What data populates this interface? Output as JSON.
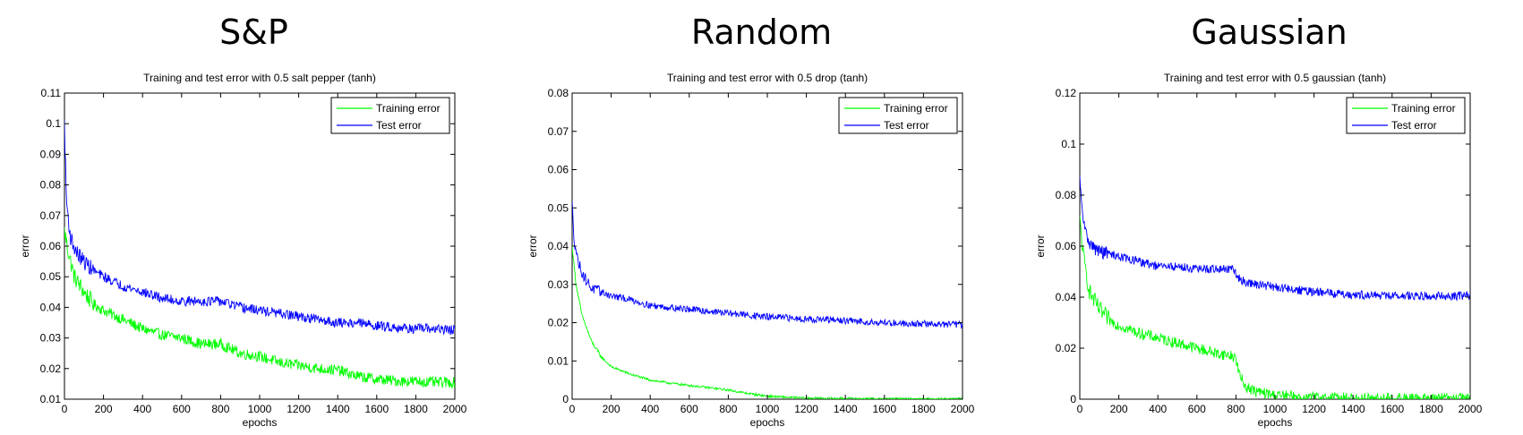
{
  "panels": [
    {
      "heading": "S&P"
    },
    {
      "heading": "Random"
    },
    {
      "heading": "Gaussian"
    }
  ],
  "chart_data": [
    {
      "type": "line",
      "title": "Training and test error with 0.5 salt pepper (tanh)",
      "xlabel": "epochs",
      "ylabel": "error",
      "xlim": [
        0,
        2000
      ],
      "ylim": [
        0.01,
        0.11
      ],
      "xticks": [
        0,
        200,
        400,
        600,
        800,
        1000,
        1200,
        1400,
        1600,
        1800,
        2000
      ],
      "yticks": [
        0.01,
        0.02,
        0.03,
        0.04,
        0.05,
        0.06,
        0.07,
        0.08,
        0.09,
        0.1,
        0.11
      ],
      "ytick_labels": [
        "0.01",
        "0.02",
        "0.03",
        "0.04",
        "0.05",
        "0.06",
        "0.07",
        "0.08",
        "0.09",
        "0.1",
        "0.11"
      ],
      "legend": "top-right",
      "grid": false,
      "series": [
        {
          "name": "Training error",
          "color": "#00ff00",
          "x": [
            0,
            20,
            50,
            100,
            150,
            200,
            300,
            400,
            500,
            600,
            700,
            800,
            900,
            1000,
            1100,
            1200,
            1300,
            1400,
            1500,
            1600,
            1700,
            1800,
            1900,
            2000
          ],
          "y": [
            0.065,
            0.058,
            0.05,
            0.045,
            0.041,
            0.039,
            0.036,
            0.033,
            0.031,
            0.03,
            0.028,
            0.028,
            0.025,
            0.024,
            0.022,
            0.021,
            0.02,
            0.0195,
            0.0175,
            0.0165,
            0.016,
            0.0158,
            0.0155,
            0.0155
          ],
          "noise": 0.0018
        },
        {
          "name": "Test error",
          "color": "#0000ff",
          "x": [
            0,
            10,
            30,
            60,
            100,
            150,
            200,
            300,
            400,
            500,
            600,
            700,
            800,
            900,
            1000,
            1100,
            1200,
            1300,
            1400,
            1500,
            1600,
            1700,
            1800,
            1900,
            2000
          ],
          "y": [
            0.1,
            0.075,
            0.063,
            0.058,
            0.055,
            0.052,
            0.05,
            0.047,
            0.045,
            0.043,
            0.042,
            0.042,
            0.042,
            0.04,
            0.039,
            0.038,
            0.037,
            0.036,
            0.035,
            0.035,
            0.034,
            0.0335,
            0.033,
            0.033,
            0.0325
          ],
          "noise": 0.0016
        }
      ]
    },
    {
      "type": "line",
      "title": "Training and test error with 0.5 drop (tanh)",
      "xlabel": "epochs",
      "ylabel": "error",
      "xlim": [
        0,
        2000
      ],
      "ylim": [
        0,
        0.08
      ],
      "xticks": [
        0,
        200,
        400,
        600,
        800,
        1000,
        1200,
        1400,
        1600,
        1800,
        2000
      ],
      "yticks": [
        0,
        0.01,
        0.02,
        0.03,
        0.04,
        0.05,
        0.06,
        0.07,
        0.08
      ],
      "ytick_labels": [
        "0",
        "0.01",
        "0.02",
        "0.03",
        "0.04",
        "0.05",
        "0.06",
        "0.07",
        "0.08"
      ],
      "legend": "top-right",
      "grid": false,
      "series": [
        {
          "name": "Training error",
          "color": "#00ff00",
          "x": [
            0,
            20,
            50,
            100,
            150,
            200,
            300,
            400,
            500,
            600,
            700,
            800,
            900,
            1000,
            1100,
            1200,
            1400,
            1600,
            1800,
            2000
          ],
          "y": [
            0.04,
            0.03,
            0.022,
            0.015,
            0.011,
            0.0085,
            0.0065,
            0.005,
            0.0042,
            0.0036,
            0.003,
            0.0024,
            0.0015,
            0.0008,
            0.0005,
            0.0003,
            0.0002,
            0.0001,
            0.0001,
            0.0001
          ],
          "noise": 0.0003
        },
        {
          "name": "Test error",
          "color": "#0000ff",
          "x": [
            0,
            10,
            30,
            60,
            100,
            150,
            200,
            300,
            400,
            500,
            600,
            700,
            800,
            900,
            1000,
            1200,
            1400,
            1600,
            1800,
            2000
          ],
          "y": [
            0.051,
            0.042,
            0.036,
            0.032,
            0.029,
            0.028,
            0.027,
            0.026,
            0.0245,
            0.024,
            0.0235,
            0.023,
            0.0225,
            0.022,
            0.0215,
            0.021,
            0.0205,
            0.02,
            0.0197,
            0.0195
          ],
          "noise": 0.0009
        }
      ]
    },
    {
      "type": "line",
      "title": "Training and test error with 0.5 gaussian (tanh)",
      "xlabel": "epochs",
      "ylabel": "error",
      "xlim": [
        0,
        2000
      ],
      "ylim": [
        0,
        0.12
      ],
      "xticks": [
        0,
        200,
        400,
        600,
        800,
        1000,
        1200,
        1400,
        1600,
        1800,
        2000
      ],
      "yticks": [
        0,
        0.02,
        0.04,
        0.06,
        0.08,
        0.1,
        0.12
      ],
      "ytick_labels": [
        "0",
        "0.02",
        "0.04",
        "0.06",
        "0.08",
        "0.1",
        "0.12"
      ],
      "legend": "top-right",
      "grid": false,
      "series": [
        {
          "name": "Training error",
          "color": "#00ff00",
          "x": [
            0,
            20,
            50,
            100,
            150,
            200,
            300,
            400,
            500,
            600,
            700,
            780,
            800,
            820,
            850,
            900,
            1000,
            1100,
            1200,
            1400,
            1600,
            1800,
            2000
          ],
          "y": [
            0.07,
            0.055,
            0.042,
            0.035,
            0.031,
            0.029,
            0.026,
            0.024,
            0.022,
            0.02,
            0.018,
            0.017,
            0.016,
            0.009,
            0.005,
            0.003,
            0.0015,
            0.001,
            0.0006,
            0.0004,
            0.0003,
            0.0002,
            0.0002
          ],
          "noise": 0.0022
        },
        {
          "name": "Test error",
          "color": "#0000ff",
          "x": [
            0,
            10,
            30,
            60,
            100,
            200,
            300,
            400,
            500,
            600,
            700,
            780,
            800,
            820,
            850,
            900,
            1000,
            1100,
            1200,
            1400,
            1600,
            1800,
            2000
          ],
          "y": [
            0.086,
            0.075,
            0.065,
            0.06,
            0.058,
            0.056,
            0.054,
            0.052,
            0.052,
            0.051,
            0.051,
            0.051,
            0.049,
            0.047,
            0.046,
            0.045,
            0.044,
            0.043,
            0.042,
            0.041,
            0.0405,
            0.0405,
            0.0405
          ],
          "noise": 0.0017
        }
      ]
    }
  ]
}
